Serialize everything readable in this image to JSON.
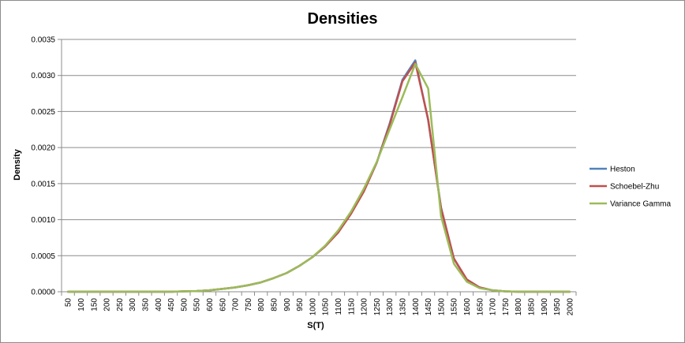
{
  "chart_data": {
    "type": "line",
    "title": "Densities",
    "xlabel": "S(T)",
    "ylabel": "Density",
    "x": [
      50,
      100,
      150,
      200,
      250,
      300,
      350,
      400,
      450,
      500,
      550,
      600,
      650,
      700,
      750,
      800,
      850,
      900,
      950,
      1000,
      1050,
      1100,
      1150,
      1200,
      1250,
      1300,
      1350,
      1400,
      1450,
      1500,
      1550,
      1600,
      1650,
      1700,
      1750,
      1800,
      1850,
      1900,
      1950,
      2000
    ],
    "ylim": [
      0,
      0.0035
    ],
    "yticks": [
      "0.0000",
      "0.0005",
      "0.0010",
      "0.0015",
      "0.0020",
      "0.0025",
      "0.0030",
      "0.0035"
    ],
    "grid": true,
    "legend_position": "right",
    "series": [
      {
        "name": "Heston",
        "color": "#4f81bd",
        "values": [
          0,
          0,
          0,
          0,
          0,
          0,
          0,
          0,
          0,
          5e-06,
          1e-05,
          2e-05,
          4e-05,
          6e-05,
          9e-05,
          0.00013,
          0.00019,
          0.00026,
          0.00036,
          0.00048,
          0.00063,
          0.00083,
          0.00109,
          0.0014,
          0.00179,
          0.00233,
          0.00294,
          0.00321,
          0.00238,
          0.00117,
          0.00046,
          0.00017,
          6e-05,
          2e-05,
          5e-06,
          0,
          0,
          0,
          0,
          0
        ]
      },
      {
        "name": "Schoebel-Zhu",
        "color": "#c0504d",
        "values": [
          0,
          0,
          0,
          0,
          0,
          0,
          0,
          0,
          0,
          5e-06,
          1e-05,
          2e-05,
          4e-05,
          6e-05,
          9e-05,
          0.00013,
          0.00019,
          0.00026,
          0.00036,
          0.00048,
          0.00063,
          0.00082,
          0.00108,
          0.00139,
          0.00179,
          0.00231,
          0.00292,
          0.00318,
          0.00239,
          0.00116,
          0.00046,
          0.00017,
          6e-05,
          2e-05,
          5e-06,
          0,
          0,
          0,
          0,
          0
        ]
      },
      {
        "name": "Variance Gamma",
        "color": "#9bbb59",
        "values": [
          0,
          0,
          0,
          0,
          0,
          0,
          0,
          0,
          0,
          5e-06,
          1e-05,
          2e-05,
          4e-05,
          6e-05,
          9e-05,
          0.00013,
          0.00019,
          0.00026,
          0.00036,
          0.00048,
          0.00064,
          0.00085,
          0.00111,
          0.00143,
          0.0018,
          0.00225,
          0.0027,
          0.00316,
          0.00282,
          0.00105,
          0.00039,
          0.00014,
          5e-05,
          2e-05,
          5e-06,
          0,
          0,
          0,
          0,
          0
        ]
      }
    ]
  }
}
